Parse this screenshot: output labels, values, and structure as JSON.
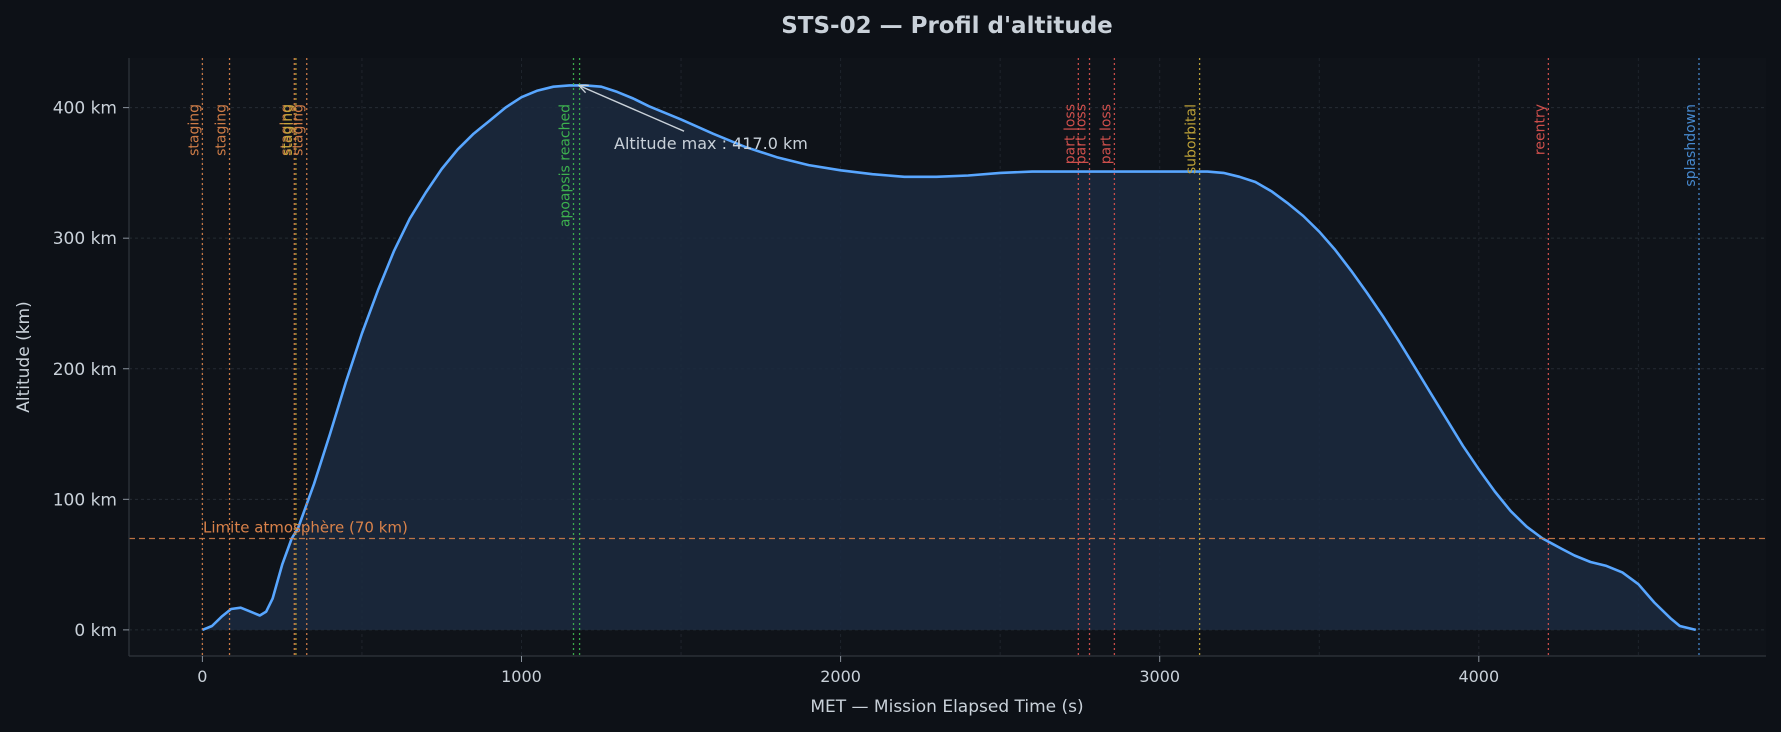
{
  "chart_data": {
    "type": "area",
    "title": "STS-02 — Profil d'altitude",
    "xlabel": "MET — Mission Elapsed Time (s)",
    "ylabel": "Altitude (km)",
    "xlim": [
      -230,
      4900
    ],
    "ylim": [
      -20,
      438
    ],
    "x_ticks": [
      0,
      1000,
      2000,
      3000,
      4000
    ],
    "y_ticks": [
      0,
      100,
      200,
      300,
      400
    ],
    "y_tick_format": "{v} km",
    "grid": true,
    "series": [
      {
        "color": "#58a6ff",
        "fill": "#1b2a40",
        "x": [
          0,
          30,
          60,
          90,
          120,
          150,
          180,
          200,
          220,
          250,
          280,
          300,
          350,
          400,
          450,
          500,
          550,
          600,
          650,
          700,
          750,
          800,
          850,
          900,
          950,
          1000,
          1050,
          1100,
          1150,
          1180,
          1200,
          1250,
          1300,
          1350,
          1400,
          1500,
          1600,
          1700,
          1800,
          1900,
          2000,
          2100,
          2200,
          2300,
          2400,
          2500,
          2600,
          2700,
          2800,
          2900,
          3000,
          3100,
          3150,
          3200,
          3250,
          3300,
          3350,
          3400,
          3450,
          3500,
          3550,
          3600,
          3650,
          3700,
          3750,
          3800,
          3850,
          3900,
          3950,
          4000,
          4050,
          4100,
          4150,
          4200,
          4230,
          4260,
          4300,
          4350,
          4400,
          4450,
          4500,
          4550,
          4600,
          4630,
          4680
        ],
        "y": [
          0,
          3,
          10,
          16,
          17,
          14,
          11,
          14,
          24,
          50,
          70,
          78,
          112,
          150,
          190,
          227,
          260,
          290,
          315,
          335,
          353,
          368,
          380,
          390,
          400,
          408,
          413,
          416,
          417,
          417,
          417,
          416,
          412,
          407,
          401,
          391,
          380,
          370,
          362,
          356,
          352,
          349,
          347,
          347,
          348,
          350,
          351,
          351,
          351,
          351,
          351,
          351,
          351,
          350,
          347,
          343,
          336,
          327,
          317,
          305,
          291,
          275,
          258,
          240,
          221,
          201,
          181,
          161,
          141,
          123,
          106,
          91,
          79,
          70,
          66,
          62,
          57,
          52,
          49,
          44,
          35,
          21,
          9,
          3,
          0
        ]
      }
    ],
    "reference_line": {
      "y": 70,
      "label": "Limite atmosphère (70 km)",
      "color": "#d9824a"
    },
    "annotation": {
      "x": 1180,
      "y": 417,
      "text": "Altitude max : 417.0 km",
      "text_x": 1290,
      "text_y": 372,
      "color": "#c9d1d9"
    },
    "events": [
      {
        "x": 0,
        "label": "staging",
        "color": "#d9824a"
      },
      {
        "x": 85,
        "label": "staging",
        "color": "#d9824a"
      },
      {
        "x": 288,
        "label": "staging",
        "color": "#d9824a"
      },
      {
        "x": 293,
        "label": "staging",
        "color": "#c7a93a"
      },
      {
        "x": 327,
        "label": "staging",
        "color": "#d9824a"
      },
      {
        "x": 1163,
        "label": "apoapsis reached",
        "color": "#3fb950"
      },
      {
        "x": 1182,
        "label": "",
        "color": "#3fb950"
      },
      {
        "x": 2745,
        "label": "part loss",
        "color": "#d9534f"
      },
      {
        "x": 2780,
        "label": "part loss",
        "color": "#d9534f"
      },
      {
        "x": 2858,
        "label": "part loss",
        "color": "#d9534f"
      },
      {
        "x": 3125,
        "label": "suborbital",
        "color": "#c7a93a"
      },
      {
        "x": 4218,
        "label": "reentry",
        "color": "#d9534f"
      },
      {
        "x": 4690,
        "label": "splashdown",
        "color": "#4a90d9"
      }
    ]
  }
}
